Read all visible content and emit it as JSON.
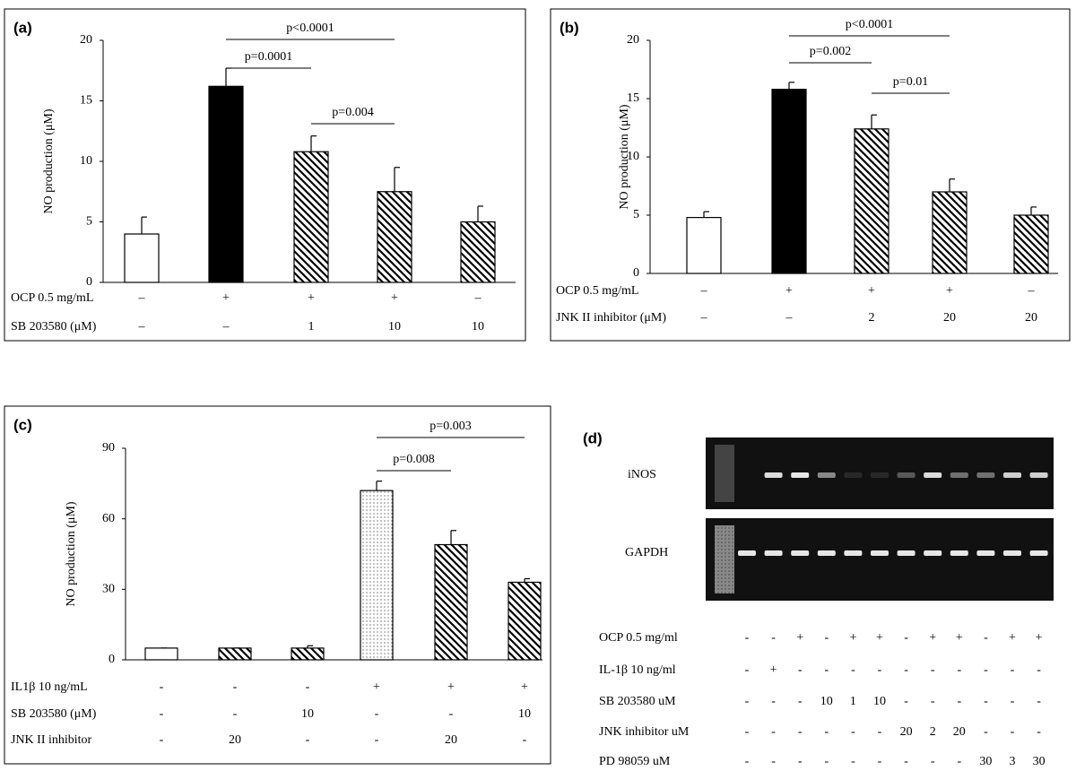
{
  "chart_data": [
    {
      "type": "bar",
      "panel_label": "(a)",
      "y_label": "NO production (μM)",
      "values": [
        4,
        16.2,
        10.8,
        7.5,
        5
      ],
      "errors": [
        1.4,
        1.5,
        1.3,
        2,
        1.3
      ],
      "fills": [
        "white",
        "black",
        "hatch",
        "hatch",
        "hatch"
      ],
      "ylim": [
        0,
        20
      ],
      "yticks": [
        0,
        5,
        10,
        15,
        20
      ],
      "conditions": [
        {
          "label": "OCP 0.5 mg/mL",
          "values": [
            "–",
            "+",
            "+",
            "+",
            "–"
          ]
        },
        {
          "label": "SB 203580 (μM)",
          "values": [
            "–",
            "–",
            "1",
            "10",
            "10"
          ]
        }
      ],
      "annotations": [
        {
          "text": "p<0.0001",
          "between": [
            1,
            3
          ]
        },
        {
          "text": "p=0.0001",
          "between": [
            1,
            2
          ]
        },
        {
          "text": "p=0.004",
          "between": [
            2,
            3
          ]
        }
      ]
    },
    {
      "type": "bar",
      "panel_label": "(b)",
      "y_label": "NO production (μM)",
      "values": [
        4.8,
        15.8,
        12.4,
        7,
        5
      ],
      "errors": [
        0.5,
        0.6,
        1.2,
        1.1,
        0.7
      ],
      "fills": [
        "white",
        "black",
        "hatch",
        "hatch",
        "hatch"
      ],
      "ylim": [
        0,
        20
      ],
      "yticks": [
        0,
        5,
        10,
        15,
        20
      ],
      "conditions": [
        {
          "label": "OCP 0.5 mg/mL",
          "values": [
            "–",
            "+",
            "+",
            "+",
            "–"
          ]
        },
        {
          "label": "JNK II inhibitor (μM)",
          "values": [
            "–",
            "–",
            "2",
            "20",
            "20"
          ]
        }
      ],
      "annotations": [
        {
          "text": "p<0.0001",
          "between": [
            1,
            3
          ]
        },
        {
          "text": "p=0.002",
          "between": [
            1,
            2
          ]
        },
        {
          "text": "p=0.01",
          "between": [
            2,
            3
          ]
        }
      ]
    },
    {
      "type": "bar",
      "panel_label": "(c)",
      "y_label": "NO production (μM)",
      "values": [
        5,
        5,
        5,
        72,
        49,
        33
      ],
      "errors": [
        0,
        0,
        1,
        4,
        6,
        1.5
      ],
      "fills": [
        "white",
        "hatch",
        "hatch",
        "dots",
        "hatch",
        "hatch"
      ],
      "ylim": [
        0,
        90
      ],
      "yticks": [
        0,
        30,
        60,
        90
      ],
      "conditions": [
        {
          "label": "IL1β 10 ng/mL",
          "values": [
            "-",
            "-",
            "-",
            "+",
            "+",
            "+"
          ]
        },
        {
          "label": "SB 203580 (μM)",
          "values": [
            "-",
            "-",
            "10",
            "-",
            "-",
            "10"
          ]
        },
        {
          "label": "JNK II inhibitor",
          "values": [
            "-",
            "20",
            "-",
            "-",
            "20",
            "-"
          ]
        }
      ],
      "annotations": [
        {
          "text": "p=0.003",
          "between": [
            3,
            5
          ]
        },
        {
          "text": "p=0.008",
          "between": [
            3,
            4
          ]
        }
      ]
    }
  ],
  "panel_d": {
    "label": "(d)",
    "bands": [
      "iNOS",
      "GAPDH"
    ],
    "conditions": [
      {
        "label": "OCP 0.5 mg/ml",
        "values": [
          "-",
          "-",
          "+",
          "-",
          "+",
          "+",
          "-",
          "+",
          "+",
          "-",
          "+",
          "+"
        ]
      },
      {
        "label": "IL-1β 10 ng/ml",
        "values": [
          "-",
          "+",
          "-",
          "-",
          "-",
          "-",
          "-",
          "-",
          "-",
          "-",
          "-",
          "-"
        ]
      },
      {
        "label": "SB 203580 uM",
        "values": [
          "-",
          "-",
          "-",
          "10",
          "1",
          "10",
          "-",
          "-",
          "-",
          "-",
          "-",
          "-"
        ]
      },
      {
        "label": "JNK inhibitor uM",
        "values": [
          "-",
          "-",
          "-",
          "-",
          "-",
          "-",
          "20",
          "2",
          "20",
          "-",
          "-",
          "-"
        ]
      },
      {
        "label": "PD 98059 uM",
        "values": [
          "-",
          "-",
          "-",
          "-",
          "-",
          "-",
          "-",
          "-",
          "-",
          "30",
          "3",
          "30"
        ]
      }
    ]
  }
}
